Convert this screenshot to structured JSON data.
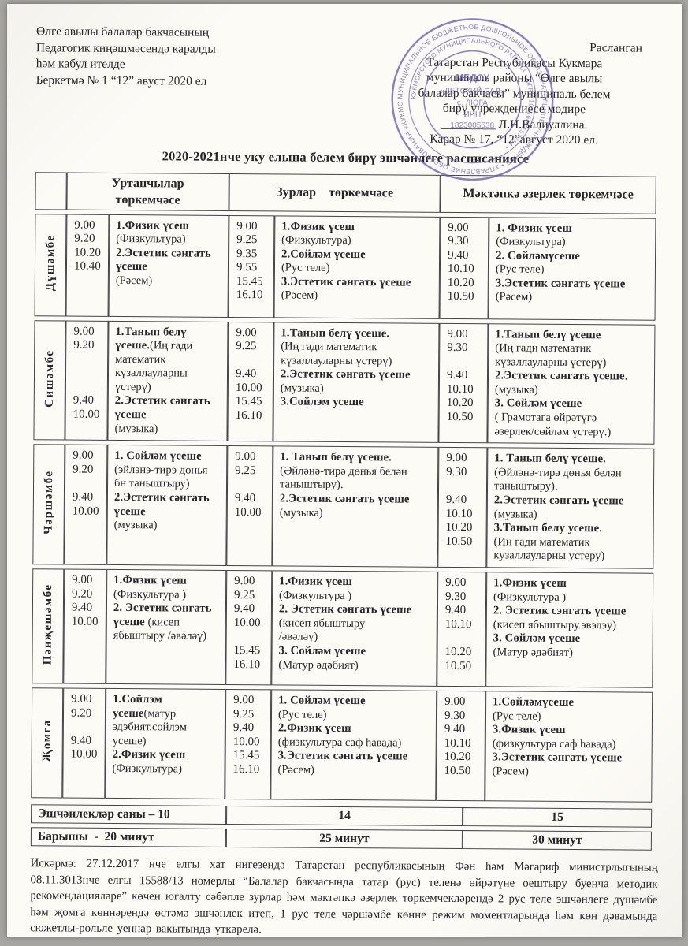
{
  "colors": {
    "stamp": "#6a5aa8",
    "ink": "#26262a",
    "paper": "#fbfaf5"
  },
  "approved": [
    "Өлге авылы балалар бакчасының",
    "Педагогик киңәшмәсендә каралды",
    "һәм кабул ителде",
    "Беркетмә № 1 “12” авуст  2020 ел"
  ],
  "confirmed": [
    "Расланган",
    "Татарстан Республикасы Кукмара",
    "муниципаль районы “Өлге авылы",
    "балалар бакчасы” муниципаль белем",
    "бирү учреждениесе мөдире",
    "_________ Л.Н.Валиуллина.",
    "Карар № 17, “12”август 2020 ел."
  ],
  "stamp": {
    "outer_text": "МУНИЦИПАЛЬНОЕ БЮДЖЕТНОЕ ДОШКОЛЬНОЕ ОБРАЗОВАТЕЛЬНОЕ УЧРЕЖДЕНИЕ • УПРАВЛЕНИЕ ОБРАЗОВАНИЯ «КУКМОРСКИЙ МУНИЦИПАЛЬНЫЙ РАЙОН»",
    "mid_text": "КУКМОРСКОГО МУНИЦИПАЛЬНОГО РАЙОНА • ОГРН 1021607157764 •",
    "center_lines": [
      "МБДОУ",
      "«ДЕТСКИЙ САД»",
      "с. ЛЮГА",
      "ИНН",
      "1823005538"
    ]
  },
  "page": {
    "title": "2020-2021нче уку елына белем бирү эшчәнлеге расписаниясе"
  },
  "table": {
    "headers": [
      "Уртанчылар\nтөркемчәсе",
      "Зурлар    төркемчәсе",
      "Мәктәпкә әзерлек төркемчәсе"
    ],
    "rows": [
      {
        "day": "Дүшәмбе",
        "g1_time": "9.00\n9.20\n10.20\n10.40",
        "g1_act": [
          {
            "b": 1,
            "t": "1.Физик үсеш\n"
          },
          {
            "b": 0,
            "t": "(Физкультура)\n"
          },
          {
            "b": 1,
            "t": "2.Эстетик сәнгать\nүсеше\n"
          },
          {
            "b": 0,
            "t": "(Рәсем)"
          }
        ],
        "g2_time": "9.00\n9.25\n9.35\n9.55\n15.45\n16.10",
        "g2_act": [
          {
            "b": 1,
            "t": "1.Физик үсеш\n"
          },
          {
            "b": 0,
            "t": "(Физкультура)\n"
          },
          {
            "b": 1,
            "t": "2.Сөйләм үсеше\n"
          },
          {
            "b": 0,
            "t": "(Рус теле)\n"
          },
          {
            "b": 1,
            "t": "3.Эстетик сәнгать үсеше\n"
          },
          {
            "b": 0,
            "t": "(Рәсем)"
          }
        ],
        "g3_time": "9.00\n9.30\n9.40\n10.10\n10.20\n10.50",
        "g3_act": [
          {
            "b": 1,
            "t": "1. Физик үсеш\n"
          },
          {
            "b": 0,
            "t": "(Физкультура)\n"
          },
          {
            "b": 1,
            "t": "2. Сөйләмүсеше\n"
          },
          {
            "b": 0,
            "t": "(Рус теле)\n"
          },
          {
            "b": 1,
            "t": "3.Эстетик сәнгать үсеше\n"
          },
          {
            "b": 0,
            "t": "(Рәсем)"
          }
        ]
      },
      {
        "day": "Сишәмбе",
        "g1_time": "9.00\n9.20\n\n\n\n9.40\n10.00",
        "g1_act": [
          {
            "b": 1,
            "t": "1.Танып белү\nүсеше."
          },
          {
            "b": 0,
            "t": "(Иң гади\nматематик\nкүзаллауларны\nүстерү)\n"
          },
          {
            "b": 1,
            "t": "2.Эстетик сәнгать\nүсеше\n"
          },
          {
            "b": 0,
            "t": "(музыка)"
          }
        ],
        "g2_time": "9.00\n9.25\n\n9.40\n10.00\n15.45\n16.10",
        "g2_act": [
          {
            "b": 1,
            "t": "1.Танып белү үсеше.\n"
          },
          {
            "b": 0,
            "t": "(Иң гади математик\nкүзаллауларны үстерү)\n"
          },
          {
            "b": 1,
            "t": "2.Эстетик сәнгать үсеше\n"
          },
          {
            "b": 0,
            "t": "(музыка)\n"
          },
          {
            "b": 1,
            "t": "3.Сойлэм усеше"
          }
        ],
        "g3_time": "9.00\n9.30\n\n9.40\n10.10\n10.20\n10.50",
        "g3_act": [
          {
            "b": 1,
            "t": "1.Танып белү үсеше\n"
          },
          {
            "b": 0,
            "t": "(Иң гади математик\nкүзаллауларны үстерү)\n"
          },
          {
            "b": 1,
            "t": "2.Эстетик сәнгать үсеше"
          },
          {
            "b": 0,
            "t": ".\n(музыка)\n"
          },
          {
            "b": 1,
            "t": "3. Сөйләм үсеше\n"
          },
          {
            "b": 0,
            "t": "( Грамотага өйрәтүгә\nәзерлек/сөйләм үстерү.)"
          }
        ]
      },
      {
        "day": "Чәршәмбе",
        "g1_time": "9.00\n9.20\n\n9.40\n10.00",
        "g1_act": [
          {
            "b": 1,
            "t": "1. Сөйләм үсеше\n"
          },
          {
            "b": 0,
            "t": "(эйлэнэ-тирэ донья\nбн таныштыру)\n"
          },
          {
            "b": 1,
            "t": "2.Эстетик сәнгать\nүсеше\n"
          },
          {
            "b": 0,
            "t": "(музыка)"
          }
        ],
        "g2_time": "9.00\n9.25\n\n9.40\n10.00",
        "g2_act": [
          {
            "b": 1,
            "t": "1. Танып белү үсеше.\n"
          },
          {
            "b": 0,
            "t": "(Әйләнә-тирә дөнья белән\nтаныштыру).\n"
          },
          {
            "b": 1,
            "t": "2.Эстетик сәнгать үсеше\n"
          },
          {
            "b": 0,
            "t": "(музыка)"
          }
        ],
        "g3_time": "9.00\n9.30\n\n9.40\n10.10\n10.20\n10.50",
        "g3_act": [
          {
            "b": 1,
            "t": "1. Танып белү үсеше.\n"
          },
          {
            "b": 0,
            "t": "(Әйләнә-тирә дөнья белән\nтаныштыру).\n"
          },
          {
            "b": 1,
            "t": "2.Эстетик сәнгать үсеше\n"
          },
          {
            "b": 0,
            "t": "(музыка)\n"
          },
          {
            "b": 1,
            "t": "3.Танып белу усеше.\n"
          },
          {
            "b": 0,
            "t": "(Ин гади математик\nкузаллауларны устеру)"
          }
        ]
      },
      {
        "day": "Пәнҗешәмбе",
        "g1_time": "9.00\n9.20\n9.40\n10.00",
        "g1_act": [
          {
            "b": 1,
            "t": "1.Физик үсеш\n"
          },
          {
            "b": 0,
            "t": "(Физкультура )\n"
          },
          {
            "b": 1,
            "t": "2. Эстетик сәнгать\nүсеше "
          },
          {
            "b": 0,
            "t": "(кисеп\nябыштыру /әвәләү)"
          }
        ],
        "g2_time": "9.00\n9.25\n9.40\n10.00\n\n15.45\n16.10",
        "g2_act": [
          {
            "b": 1,
            "t": "1.Физик үсеш\n"
          },
          {
            "b": 0,
            "t": "(Физкультура )\n"
          },
          {
            "b": 1,
            "t": "2. Эстетик сәнгать үсеше "
          },
          {
            "b": 0,
            "t": "(кисеп ябыштыру\n/әвәләү)\n"
          },
          {
            "b": 1,
            "t": "3. Сойләм үсеше\n"
          },
          {
            "b": 0,
            "t": "(Матур әдәбият)"
          }
        ],
        "g3_time": "9.00\n9.30\n9.40\n10.10\n\n10.20\n10.50",
        "g3_act": [
          {
            "b": 1,
            "t": "1.Физик үсеш\n"
          },
          {
            "b": 0,
            "t": "(Физкультура )\n"
          },
          {
            "b": 1,
            "t": "2. Эстетик сэнгать үсеше\n"
          },
          {
            "b": 0,
            "t": "(кисеп ябыштыру.эвэлэу)\n"
          },
          {
            "b": 1,
            "t": "3. Сөйләм үсеше\n"
          },
          {
            "b": 0,
            "t": "(Матур әдәбият)"
          }
        ]
      },
      {
        "day": "Җомга",
        "g1_time": "9.00\n9.20\n\n9.40\n10.00",
        "g1_act": [
          {
            "b": 1,
            "t": "1.Сойлэм\nусеше"
          },
          {
            "b": 0,
            "t": "(матур\nэдэбият.сойлэм\nусеше)\n"
          },
          {
            "b": 1,
            "t": "2.Физик үсеш\n"
          },
          {
            "b": 0,
            "t": "(Физкультура)"
          }
        ],
        "g2_time": "9.00\n9.25\n9.40\n10.00\n15.45\n16.10",
        "g2_act": [
          {
            "b": 1,
            "t": "1. Сөйләм үсеше\n"
          },
          {
            "b": 0,
            "t": "(Рус теле)\n"
          },
          {
            "b": 1,
            "t": "2.Физик үсеш\n"
          },
          {
            "b": 0,
            "t": "(физкультура саф һавада)\n"
          },
          {
            "b": 1,
            "t": "3.Эстетик сәнгать үсеше\n"
          },
          {
            "b": 0,
            "t": "(Рәсем)"
          }
        ],
        "g3_time": "9.00\n9.30\n9.40\n10.10\n10.20\n10.50",
        "g3_act": [
          {
            "b": 1,
            "t": "1.Сөйләмүсеше\n"
          },
          {
            "b": 0,
            "t": "(Рус теле)\n"
          },
          {
            "b": 1,
            "t": "3.Физик үсеш\n"
          },
          {
            "b": 0,
            "t": "(физкультура саф һавада)\n"
          },
          {
            "b": 1,
            "t": "3.Эстетик сәнгать үсеше\n"
          },
          {
            "b": 0,
            "t": "(Рәсем)"
          }
        ]
      }
    ],
    "summary": {
      "count_label": "Эшчәнлекләр саны – 10",
      "count_g2": "14",
      "count_g3": "15",
      "dur_label": "Барышы  -  20 минут",
      "dur_g2": "25 минут",
      "dur_g3": "30 минут"
    }
  },
  "footnote": "Искәрмә: 27.12.2017 нче елгы хат нигезендә Татарстан республикасының Фән һәм Мәгариф министрлыгының 08.11.3013нче елгы 15588/13 номерлы “Балалар бакчасында татар (рус) теленә өйрәтүне оештыру буенча методик рекомендацияләре” көчен югалту сәбәпле зурлар һәм мәктәпкә әзерлек төркемчекләрендә 2 рус теле  эшчәнлеге дүшәмбе һәм җомга  көннәрендә өстәмә эшчәнлек итеп, 1 рус теле чәршәмбе көнне  режим моментларында һәм көн дәвамында сюжетлы-рольле уеннар вакытында үткәрелә."
}
